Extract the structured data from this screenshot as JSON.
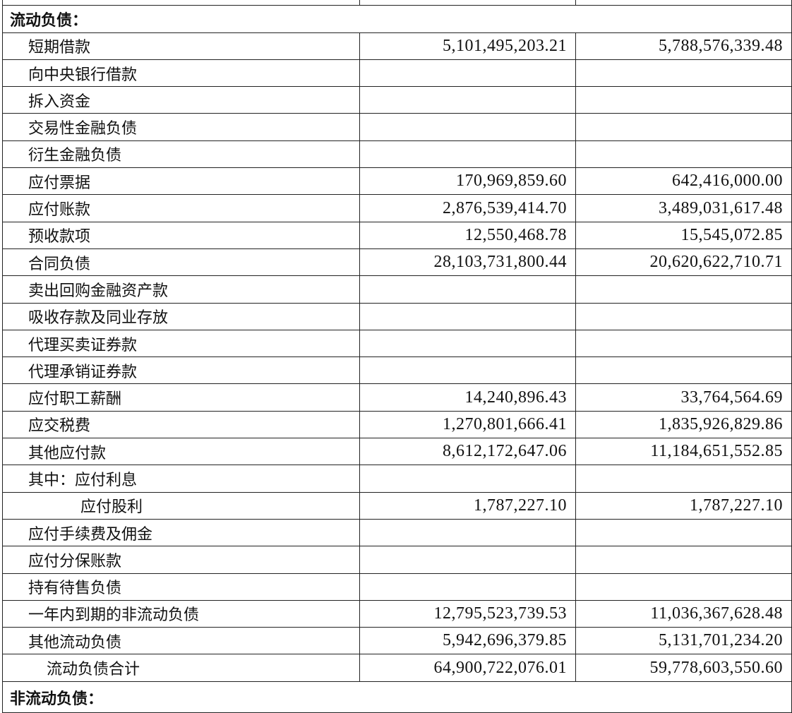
{
  "sections": {
    "current": "流动负债：",
    "noncurrent": "非流动负债："
  },
  "rows": [
    {
      "label": "短期借款",
      "end": "5,101,495,203.21",
      "begin": "5,788,576,339.48"
    },
    {
      "label": "向中央银行借款",
      "end": "",
      "begin": ""
    },
    {
      "label": "拆入资金",
      "end": "",
      "begin": ""
    },
    {
      "label": "交易性金融负债",
      "end": "",
      "begin": ""
    },
    {
      "label": "衍生金融负债",
      "end": "",
      "begin": ""
    },
    {
      "label": "应付票据",
      "end": "170,969,859.60",
      "begin": "642,416,000.00"
    },
    {
      "label": "应付账款",
      "end": "2,876,539,414.70",
      "begin": "3,489,031,617.48"
    },
    {
      "label": "预收款项",
      "end": "12,550,468.78",
      "begin": "15,545,072.85"
    },
    {
      "label": "合同负债",
      "end": "28,103,731,800.44",
      "begin": "20,620,622,710.71"
    },
    {
      "label": "卖出回购金融资产款",
      "end": "",
      "begin": ""
    },
    {
      "label": "吸收存款及同业存放",
      "end": "",
      "begin": ""
    },
    {
      "label": "代理买卖证券款",
      "end": "",
      "begin": ""
    },
    {
      "label": "代理承销证券款",
      "end": "",
      "begin": ""
    },
    {
      "label": "应付职工薪酬",
      "end": "14,240,896.43",
      "begin": "33,764,564.69"
    },
    {
      "label": "应交税费",
      "end": "1,270,801,666.41",
      "begin": "1,835,926,829.86"
    },
    {
      "label": "其他应付款",
      "end": "8,612,172,647.06",
      "begin": "11,184,651,552.85"
    },
    {
      "label": "其中：应付利息",
      "end": "",
      "begin": ""
    },
    {
      "label": "应付股利",
      "end": "1,787,227.10",
      "begin": "1,787,227.10"
    },
    {
      "label": "应付手续费及佣金",
      "end": "",
      "begin": ""
    },
    {
      "label": "应付分保账款",
      "end": "",
      "begin": ""
    },
    {
      "label": "持有待售负债",
      "end": "",
      "begin": ""
    },
    {
      "label": "一年内到期的非流动负债",
      "end": "12,795,523,739.53",
      "begin": "11,036,367,628.48"
    },
    {
      "label": "其他流动负债",
      "end": "5,942,696,379.85",
      "begin": "5,131,701,234.20"
    },
    {
      "label": "流动负债合计",
      "end": "64,900,722,076.01",
      "begin": "59,778,603,550.60"
    }
  ]
}
